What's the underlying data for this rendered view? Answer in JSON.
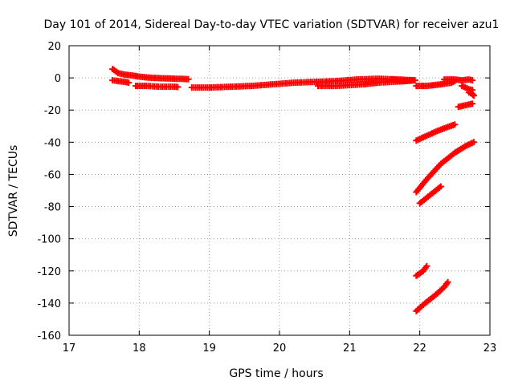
{
  "chart_data": {
    "type": "scatter",
    "title": "Day 101 of 2014, Sidereal Day-to-day VTEC variation (SDTVAR) for receiver azu1",
    "xlabel": "GPS time / hours",
    "ylabel": "SDTVAR / TECUs",
    "xlim": [
      17,
      23
    ],
    "ylim": [
      -160,
      20
    ],
    "xticks": [
      17,
      18,
      19,
      20,
      21,
      22,
      23
    ],
    "yticks": [
      20,
      0,
      -20,
      -40,
      -60,
      -80,
      -100,
      -120,
      -140,
      -160
    ],
    "grid": true,
    "marker": "plus",
    "color": "#ff0000",
    "series": [
      {
        "x": [
          17.62,
          17.7,
          17.8,
          17.9,
          18.0,
          18.1,
          18.2,
          18.3,
          18.4,
          18.5,
          18.6,
          18.7
        ],
        "y": [
          5.5,
          3,
          2,
          1.5,
          0.8,
          0.3,
          0,
          -0.2,
          -0.3,
          -0.5,
          -0.6,
          -0.8
        ]
      },
      {
        "x": [
          17.62,
          17.7,
          17.8,
          17.85
        ],
        "y": [
          -1.5,
          -2,
          -2.5,
          -3
        ]
      },
      {
        "x": [
          17.95,
          18.1,
          18.3,
          18.5,
          18.55
        ],
        "y": [
          -5,
          -5,
          -5.5,
          -5.5,
          -5.7
        ]
      },
      {
        "x": [
          18.75,
          19.0,
          19.3,
          19.6,
          19.9,
          20.2,
          20.5,
          20.8,
          21.1,
          21.4,
          21.7,
          21.93
        ],
        "y": [
          -6,
          -6,
          -5.5,
          -5,
          -4,
          -3,
          -2.5,
          -2,
          -1,
          -0.5,
          -1,
          -1.5
        ]
      },
      {
        "x": [
          20.55,
          20.8,
          21.0,
          21.2,
          21.4,
          21.6,
          21.8,
          21.93
        ],
        "y": [
          -5,
          -5,
          -4.5,
          -4,
          -3,
          -2.5,
          -2,
          -1.5
        ]
      },
      {
        "x": [
          21.6,
          21.75,
          21.9
        ],
        "y": [
          -1,
          -2,
          -1.5
        ]
      },
      {
        "x": [
          21.95,
          22.1,
          22.3,
          22.45,
          22.5
        ],
        "y": [
          -5,
          -5,
          -4,
          -3,
          -2
        ]
      },
      {
        "x": [
          22.35,
          22.5,
          22.6,
          22.7,
          22.75
        ],
        "y": [
          -1,
          -1,
          -1.5,
          -1,
          -1.5
        ]
      },
      {
        "x": [
          22.6,
          22.65,
          22.7,
          22.75
        ],
        "y": [
          -5,
          -6,
          -7,
          -7.5
        ]
      },
      {
        "x": [
          22.7,
          22.75,
          22.77
        ],
        "y": [
          -9,
          -10,
          -11
        ]
      },
      {
        "x": [
          22.55,
          22.65,
          22.75
        ],
        "y": [
          -18,
          -17,
          -16
        ]
      },
      {
        "x": [
          21.95,
          22.1,
          22.25,
          22.4,
          22.5
        ],
        "y": [
          -39,
          -36,
          -33,
          -30.5,
          -29
        ]
      },
      {
        "x": [
          21.95,
          22.1,
          22.3,
          22.5,
          22.65,
          22.77
        ],
        "y": [
          -71,
          -63,
          -53.5,
          -46.5,
          -42.5,
          -40
        ]
      },
      {
        "x": [
          22.0,
          22.1,
          22.2,
          22.3
        ],
        "y": [
          -78,
          -74.5,
          -71,
          -67.5
        ]
      },
      {
        "x": [
          21.95,
          22.05,
          22.1
        ],
        "y": [
          -123,
          -120,
          -117
        ]
      },
      {
        "x": [
          21.95,
          22.05,
          22.15,
          22.25,
          22.35,
          22.4
        ],
        "y": [
          -145,
          -141,
          -137.5,
          -134,
          -130,
          -127
        ]
      }
    ]
  }
}
